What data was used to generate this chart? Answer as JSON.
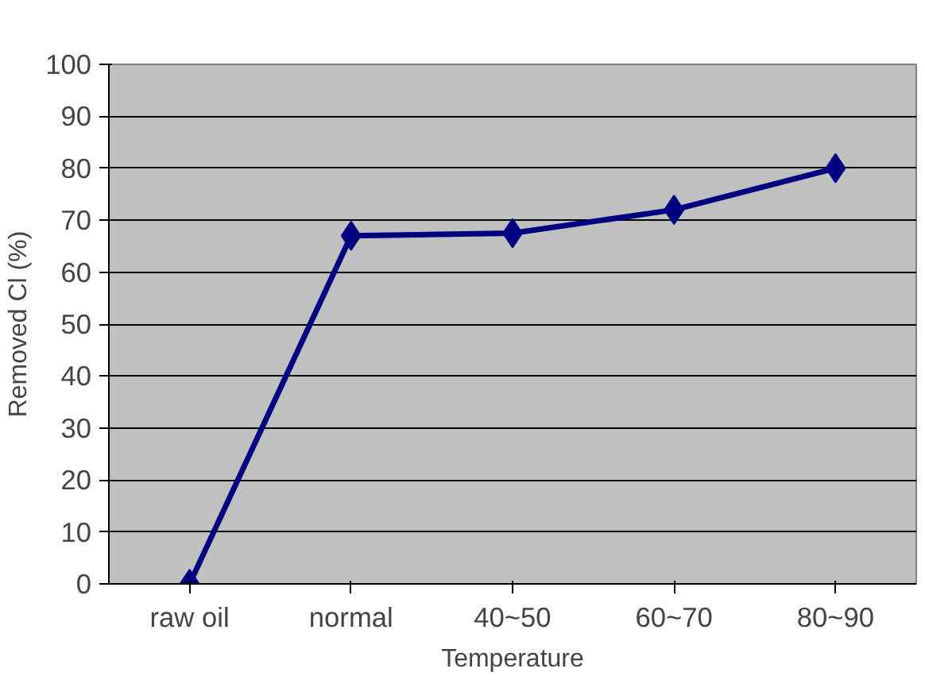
{
  "chart_data": {
    "type": "line",
    "xlabel": "Temperature",
    "ylabel": "Removed Cl (%)",
    "categories": [
      "raw oil",
      "normal",
      "40~50",
      "60~70",
      "80~90"
    ],
    "series": [
      {
        "color": "#000080",
        "values": [
          0,
          67,
          67.5,
          72,
          80
        ]
      }
    ],
    "ylim": [
      0,
      100
    ],
    "yticks": [
      0,
      10,
      20,
      30,
      40,
      50,
      60,
      70,
      80,
      90,
      100
    ],
    "grid": "y",
    "marker": "diamond",
    "line_style": "solid"
  }
}
